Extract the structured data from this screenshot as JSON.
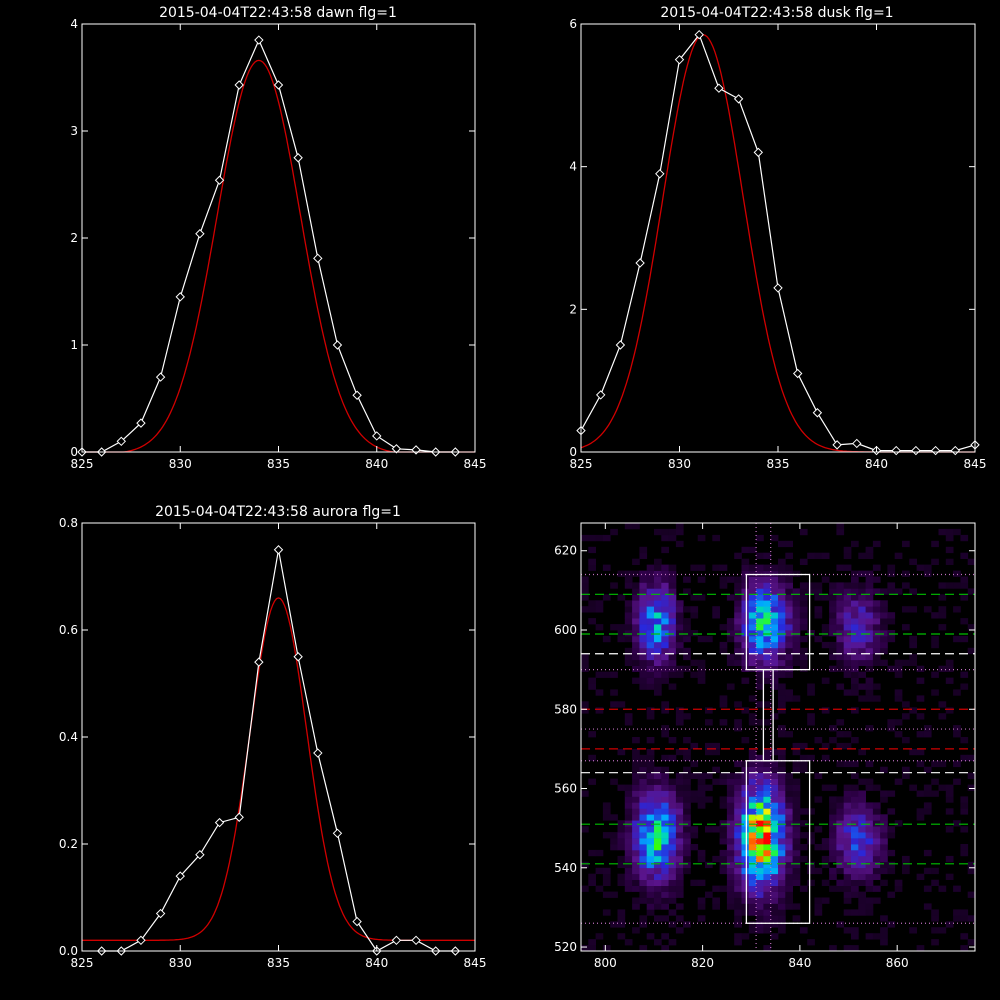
{
  "chart_data": [
    {
      "type": "line",
      "title": "2015-04-04T22:43:58 dawn flg=1",
      "xlim": [
        825,
        845
      ],
      "ylim": [
        0,
        4
      ],
      "xticks": [
        "825",
        "830",
        "835",
        "840",
        "845"
      ],
      "yticks": [
        "0",
        "1",
        "2",
        "3",
        "4"
      ],
      "series": [
        {
          "color": "#ffffff",
          "markers": "diamond",
          "x": [
            825,
            826,
            827,
            828,
            829,
            830,
            831,
            832,
            833,
            834,
            835,
            836,
            837,
            838,
            839,
            840,
            841,
            842,
            843,
            844
          ],
          "y": [
            0.0,
            0.0,
            0.1,
            0.27,
            0.7,
            1.45,
            2.04,
            2.54,
            3.43,
            3.85,
            3.43,
            2.75,
            1.81,
            1.0,
            0.53,
            0.15,
            0.03,
            0.02,
            0.0,
            0.0
          ]
        },
        {
          "color": "#d00000",
          "fit": "gaussian",
          "amplitude": 3.68,
          "center": 834.0,
          "sigma": 2.12,
          "offset": -0.02
        }
      ]
    },
    {
      "type": "line",
      "title": "2015-04-04T22:43:58 dusk flg=1",
      "xlim": [
        825,
        845
      ],
      "ylim": [
        0,
        6
      ],
      "xticks": [
        "825",
        "830",
        "835",
        "840",
        "845"
      ],
      "yticks": [
        "0",
        "2",
        "4",
        "6"
      ],
      "series": [
        {
          "color": "#ffffff",
          "markers": "diamond",
          "x": [
            825,
            826,
            827,
            828,
            829,
            830,
            831,
            832,
            833,
            834,
            835,
            836,
            837,
            838,
            839,
            840,
            841,
            842,
            843,
            844,
            845
          ],
          "y": [
            0.3,
            0.8,
            1.5,
            2.65,
            3.9,
            5.5,
            5.85,
            5.1,
            4.95,
            4.2,
            2.3,
            1.1,
            0.55,
            0.1,
            0.12,
            0.02,
            0.02,
            0.02,
            0.02,
            0.02,
            0.1
          ]
        },
        {
          "color": "#d00000",
          "fit": "gaussian",
          "amplitude": 5.85,
          "center": 831.2,
          "sigma": 2.05,
          "offset": 0.0
        }
      ]
    },
    {
      "type": "line",
      "title": "2015-04-04T22:43:58 aurora flg=1",
      "xlim": [
        825,
        845
      ],
      "ylim": [
        0,
        0.8
      ],
      "xticks": [
        "825",
        "830",
        "835",
        "840",
        "845"
      ],
      "yticks": [
        "0.0",
        "0.2",
        "0.4",
        "0.6",
        "0.8"
      ],
      "series": [
        {
          "color": "#ffffff",
          "markers": "diamond",
          "x": [
            826,
            827,
            828,
            829,
            830,
            831,
            832,
            833,
            834,
            835,
            836,
            837,
            838,
            839,
            840,
            841,
            842,
            843,
            844
          ],
          "y": [
            0.0,
            0.0,
            0.02,
            0.07,
            0.14,
            0.18,
            0.24,
            0.25,
            0.54,
            0.75,
            0.55,
            0.37,
            0.22,
            0.055,
            0.0,
            0.02,
            0.02,
            0.0,
            0.0
          ]
        },
        {
          "color": "#d00000",
          "fit": "gaussian",
          "amplitude": 0.64,
          "center": 835.0,
          "sigma": 1.45,
          "offset": 0.02
        }
      ]
    },
    {
      "type": "heatmap",
      "xlim": [
        795,
        876
      ],
      "ylim": [
        519,
        627
      ],
      "xticks": [
        "800",
        "820",
        "840",
        "860"
      ],
      "yticks": [
        "520",
        "540",
        "560",
        "580",
        "600",
        "620"
      ],
      "blobs": [
        {
          "x": 810.5,
          "y": 602,
          "sx": 2.5,
          "sy": 6,
          "amp": 0.45
        },
        {
          "x": 810.5,
          "y": 548,
          "sx": 3,
          "sy": 7,
          "amp": 0.55
        },
        {
          "x": 833,
          "y": 602,
          "sx": 3,
          "sy": 6,
          "amp": 0.6
        },
        {
          "x": 832,
          "y": 548,
          "sx": 3,
          "sy": 8,
          "amp": 0.9
        },
        {
          "x": 852,
          "y": 601,
          "sx": 3,
          "sy": 6,
          "amp": 0.22
        },
        {
          "x": 852,
          "y": 547,
          "sx": 3,
          "sy": 6,
          "amp": 0.28
        }
      ],
      "boxes": [
        {
          "x0": 829,
          "x1": 842,
          "y0": 590,
          "y1": 614,
          "color": "#ffffff"
        },
        {
          "x0": 829,
          "x1": 842,
          "y0": 526,
          "y1": 567,
          "color": "#ffffff"
        },
        {
          "x0": 832.5,
          "x1": 834.5,
          "y0": 567,
          "y1": 590,
          "color": "#ffffff"
        }
      ],
      "hlines": [
        {
          "y": 614,
          "color": "#c070c0",
          "style": "dotted"
        },
        {
          "y": 609,
          "color": "#00c000",
          "style": "dashed"
        },
        {
          "y": 599,
          "color": "#00c000",
          "style": "dashed"
        },
        {
          "y": 594,
          "color": "#ffffff",
          "style": "dashed"
        },
        {
          "y": 590,
          "color": "#c070c0",
          "style": "dotted"
        },
        {
          "y": 580,
          "color": "#d00000",
          "style": "dashed"
        },
        {
          "y": 575,
          "color": "#c070c0",
          "style": "dotted"
        },
        {
          "y": 570,
          "color": "#d00000",
          "style": "dashed"
        },
        {
          "y": 567,
          "color": "#c070c0",
          "style": "dotted"
        },
        {
          "y": 564,
          "color": "#ffffff",
          "style": "dashed"
        },
        {
          "y": 551,
          "color": "#00c000",
          "style": "dashed"
        },
        {
          "y": 541,
          "color": "#00c000",
          "style": "dashed"
        },
        {
          "y": 526,
          "color": "#c070c0",
          "style": "dotted"
        }
      ],
      "vlines": [
        {
          "x": 831,
          "color": "#c070c0",
          "style": "dotted"
        },
        {
          "x": 834,
          "color": "#c070c0",
          "style": "dotted"
        }
      ]
    }
  ]
}
